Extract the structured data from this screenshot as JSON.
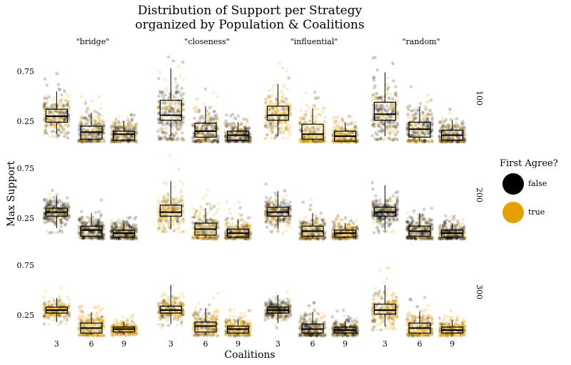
{
  "title": {
    "line1": "Distribution of Support per Strategy",
    "line2": "organized by Population & Coalitions"
  },
  "legend": {
    "title": "First Agree?",
    "items": [
      {
        "label": "false",
        "color": "#000000"
      },
      {
        "label": "true",
        "color": "#E69F00"
      }
    ]
  },
  "chart_data": {
    "type": "faceted box + jitter",
    "xlabel": "Coalitions",
    "ylabel": "Max Support",
    "y_ticks": [
      0.25,
      0.75
    ],
    "ylim": [
      0.05,
      0.95
    ],
    "facet_cols": [
      "\"bridge\"",
      "\"closeness\"",
      "\"influential\"",
      "\"random\""
    ],
    "facet_rows": [
      "100",
      "200",
      "300"
    ],
    "categories": [
      "3",
      "6",
      "9"
    ],
    "colors": {
      "false": "#000000",
      "true": "#E69F00"
    },
    "panels": [
      {
        "row": "100",
        "col": "\"bridge\"",
        "boxes": [
          {
            "x": "3",
            "q1": 0.24,
            "median": 0.3,
            "q3": 0.37,
            "lower": 0.12,
            "upper": 0.55,
            "min": 0.08,
            "max": 0.85,
            "share_true": 0.55
          },
          {
            "x": "6",
            "q1": 0.07,
            "median": 0.14,
            "q3": 0.2,
            "lower": 0.05,
            "upper": 0.33,
            "min": 0.04,
            "max": 0.5,
            "share_true": 0.5
          },
          {
            "x": "9",
            "q1": 0.06,
            "median": 0.12,
            "q3": 0.15,
            "lower": 0.05,
            "upper": 0.25,
            "min": 0.04,
            "max": 0.32,
            "share_true": 0.5
          }
        ]
      },
      {
        "row": "100",
        "col": "\"closeness\"",
        "boxes": [
          {
            "x": "3",
            "q1": 0.26,
            "median": 0.31,
            "q3": 0.46,
            "lower": 0.1,
            "upper": 0.78,
            "min": 0.06,
            "max": 0.9,
            "share_true": 0.45
          },
          {
            "x": "6",
            "q1": 0.09,
            "median": 0.15,
            "q3": 0.23,
            "lower": 0.05,
            "upper": 0.4,
            "min": 0.04,
            "max": 0.58,
            "share_true": 0.4
          },
          {
            "x": "9",
            "q1": 0.06,
            "median": 0.11,
            "q3": 0.15,
            "lower": 0.05,
            "upper": 0.24,
            "min": 0.04,
            "max": 0.32,
            "share_true": 0.35
          }
        ]
      },
      {
        "row": "100",
        "col": "\"influential\"",
        "boxes": [
          {
            "x": "3",
            "q1": 0.26,
            "median": 0.31,
            "q3": 0.4,
            "lower": 0.1,
            "upper": 0.62,
            "min": 0.07,
            "max": 0.88,
            "share_true": 0.8
          },
          {
            "x": "6",
            "q1": 0.07,
            "median": 0.12,
            "q3": 0.22,
            "lower": 0.05,
            "upper": 0.38,
            "min": 0.04,
            "max": 0.55,
            "share_true": 0.8
          },
          {
            "x": "9",
            "q1": 0.05,
            "median": 0.1,
            "q3": 0.15,
            "lower": 0.05,
            "upper": 0.24,
            "min": 0.04,
            "max": 0.3,
            "share_true": 0.8
          }
        ]
      },
      {
        "row": "100",
        "col": "\"random\"",
        "boxes": [
          {
            "x": "3",
            "q1": 0.26,
            "median": 0.32,
            "q3": 0.44,
            "lower": 0.1,
            "upper": 0.74,
            "min": 0.06,
            "max": 0.9,
            "share_true": 0.45
          },
          {
            "x": "6",
            "q1": 0.09,
            "median": 0.17,
            "q3": 0.24,
            "lower": 0.05,
            "upper": 0.4,
            "min": 0.04,
            "max": 0.6,
            "share_true": 0.45
          },
          {
            "x": "9",
            "q1": 0.06,
            "median": 0.11,
            "q3": 0.16,
            "lower": 0.05,
            "upper": 0.26,
            "min": 0.04,
            "max": 0.38,
            "share_true": 0.45
          }
        ]
      },
      {
        "row": "200",
        "col": "\"bridge\"",
        "boxes": [
          {
            "x": "3",
            "q1": 0.27,
            "median": 0.31,
            "q3": 0.35,
            "lower": 0.15,
            "upper": 0.47,
            "min": 0.1,
            "max": 0.72,
            "share_true": 0.25
          },
          {
            "x": "6",
            "q1": 0.07,
            "median": 0.13,
            "q3": 0.17,
            "lower": 0.05,
            "upper": 0.3,
            "min": 0.04,
            "max": 0.45,
            "share_true": 0.25
          },
          {
            "x": "9",
            "q1": 0.06,
            "median": 0.1,
            "q3": 0.13,
            "lower": 0.05,
            "upper": 0.2,
            "min": 0.04,
            "max": 0.26,
            "share_true": 0.3
          }
        ]
      },
      {
        "row": "200",
        "col": "\"closeness\"",
        "boxes": [
          {
            "x": "3",
            "q1": 0.27,
            "median": 0.31,
            "q3": 0.38,
            "lower": 0.14,
            "upper": 0.62,
            "min": 0.1,
            "max": 0.9,
            "share_true": 0.8
          },
          {
            "x": "6",
            "q1": 0.08,
            "median": 0.14,
            "q3": 0.2,
            "lower": 0.05,
            "upper": 0.35,
            "min": 0.04,
            "max": 0.55,
            "share_true": 0.65
          },
          {
            "x": "9",
            "q1": 0.06,
            "median": 0.1,
            "q3": 0.14,
            "lower": 0.05,
            "upper": 0.24,
            "min": 0.04,
            "max": 0.5,
            "share_true": 0.6
          }
        ]
      },
      {
        "row": "200",
        "col": "\"influential\"",
        "boxes": [
          {
            "x": "3",
            "q1": 0.27,
            "median": 0.31,
            "q3": 0.36,
            "lower": 0.14,
            "upper": 0.52,
            "min": 0.1,
            "max": 0.78,
            "share_true": 0.4
          },
          {
            "x": "6",
            "q1": 0.07,
            "median": 0.12,
            "q3": 0.17,
            "lower": 0.05,
            "upper": 0.3,
            "min": 0.04,
            "max": 0.47,
            "share_true": 0.5
          },
          {
            "x": "9",
            "q1": 0.06,
            "median": 0.1,
            "q3": 0.13,
            "lower": 0.05,
            "upper": 0.2,
            "min": 0.04,
            "max": 0.28,
            "share_true": 0.55
          }
        ]
      },
      {
        "row": "200",
        "col": "\"random\"",
        "boxes": [
          {
            "x": "3",
            "q1": 0.27,
            "median": 0.31,
            "q3": 0.36,
            "lower": 0.14,
            "upper": 0.58,
            "min": 0.1,
            "max": 0.9,
            "share_true": 0.25
          },
          {
            "x": "6",
            "q1": 0.07,
            "median": 0.12,
            "q3": 0.17,
            "lower": 0.05,
            "upper": 0.3,
            "min": 0.04,
            "max": 0.5,
            "share_true": 0.3
          },
          {
            "x": "9",
            "q1": 0.06,
            "median": 0.1,
            "q3": 0.13,
            "lower": 0.05,
            "upper": 0.2,
            "min": 0.04,
            "max": 0.28,
            "share_true": 0.35
          }
        ]
      },
      {
        "row": "300",
        "col": "\"bridge\"",
        "boxes": [
          {
            "x": "3",
            "q1": 0.27,
            "median": 0.3,
            "q3": 0.33,
            "lower": 0.18,
            "upper": 0.42,
            "min": 0.14,
            "max": 0.58,
            "share_true": 0.85
          },
          {
            "x": "6",
            "q1": 0.07,
            "median": 0.12,
            "q3": 0.17,
            "lower": 0.05,
            "upper": 0.28,
            "min": 0.04,
            "max": 0.35,
            "share_true": 0.85
          },
          {
            "x": "9",
            "q1": 0.08,
            "median": 0.11,
            "q3": 0.13,
            "lower": 0.05,
            "upper": 0.18,
            "min": 0.04,
            "max": 0.25,
            "share_true": 0.85
          }
        ]
      },
      {
        "row": "300",
        "col": "\"closeness\"",
        "boxes": [
          {
            "x": "3",
            "q1": 0.27,
            "median": 0.3,
            "q3": 0.34,
            "lower": 0.16,
            "upper": 0.55,
            "min": 0.12,
            "max": 0.92,
            "share_true": 0.75
          },
          {
            "x": "6",
            "q1": 0.08,
            "median": 0.14,
            "q3": 0.18,
            "lower": 0.05,
            "upper": 0.32,
            "min": 0.04,
            "max": 0.55,
            "share_true": 0.7
          },
          {
            "x": "9",
            "q1": 0.07,
            "median": 0.11,
            "q3": 0.14,
            "lower": 0.05,
            "upper": 0.21,
            "min": 0.04,
            "max": 0.32,
            "share_true": 0.75
          }
        ]
      },
      {
        "row": "300",
        "col": "\"influential\"",
        "boxes": [
          {
            "x": "3",
            "q1": 0.27,
            "median": 0.3,
            "q3": 0.33,
            "lower": 0.17,
            "upper": 0.45,
            "min": 0.12,
            "max": 0.62,
            "share_true": 0.3
          },
          {
            "x": "6",
            "q1": 0.07,
            "median": 0.11,
            "q3": 0.16,
            "lower": 0.05,
            "upper": 0.28,
            "min": 0.04,
            "max": 0.4,
            "share_true": 0.35
          },
          {
            "x": "9",
            "q1": 0.07,
            "median": 0.1,
            "q3": 0.13,
            "lower": 0.05,
            "upper": 0.19,
            "min": 0.04,
            "max": 0.3,
            "share_true": 0.35
          }
        ]
      },
      {
        "row": "300",
        "col": "\"random\"",
        "boxes": [
          {
            "x": "3",
            "q1": 0.26,
            "median": 0.3,
            "q3": 0.36,
            "lower": 0.14,
            "upper": 0.55,
            "min": 0.1,
            "max": 0.88,
            "share_true": 0.8
          },
          {
            "x": "6",
            "q1": 0.07,
            "median": 0.12,
            "q3": 0.17,
            "lower": 0.05,
            "upper": 0.28,
            "min": 0.04,
            "max": 0.5,
            "share_true": 0.8
          },
          {
            "x": "9",
            "q1": 0.07,
            "median": 0.1,
            "q3": 0.13,
            "lower": 0.05,
            "upper": 0.2,
            "min": 0.04,
            "max": 0.35,
            "share_true": 0.8
          }
        ]
      }
    ]
  }
}
